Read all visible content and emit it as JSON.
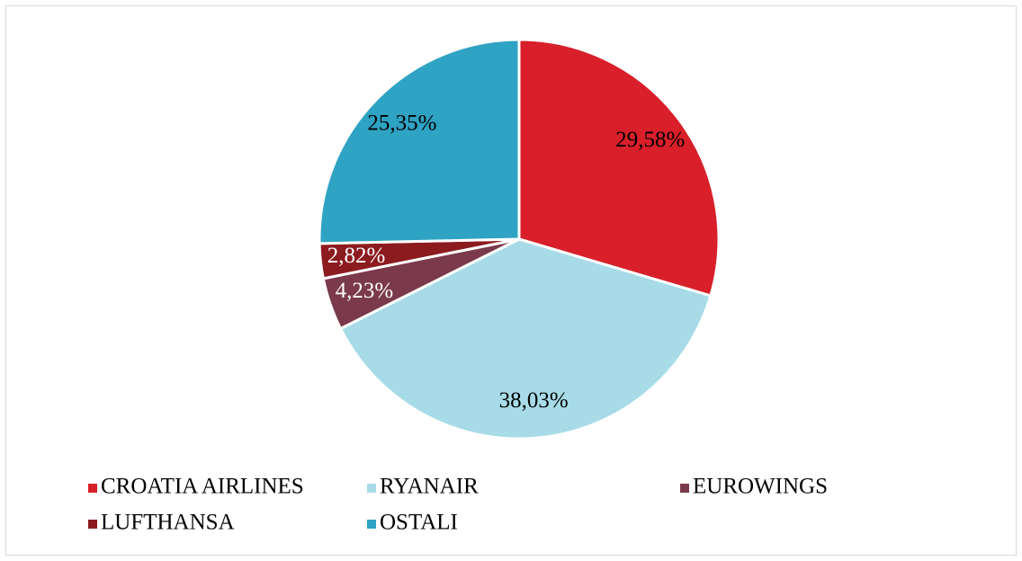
{
  "chart_data": {
    "type": "pie",
    "categories": [
      "CROATIA AIRLINES",
      "RYANAIR",
      "EUROWINGS",
      "LUFTHANSA",
      "OSTALI"
    ],
    "values": [
      29.58,
      38.03,
      4.23,
      2.82,
      25.35
    ],
    "value_labels": [
      "29,58%",
      "38,03%",
      "4,23%",
      "2,82%",
      "25,35%"
    ],
    "colors": [
      "#d81f2a",
      "#a7dbe8",
      "#7a3a4b",
      "#8c1b1f",
      "#2fa3c3"
    ],
    "legend": "bottom"
  }
}
